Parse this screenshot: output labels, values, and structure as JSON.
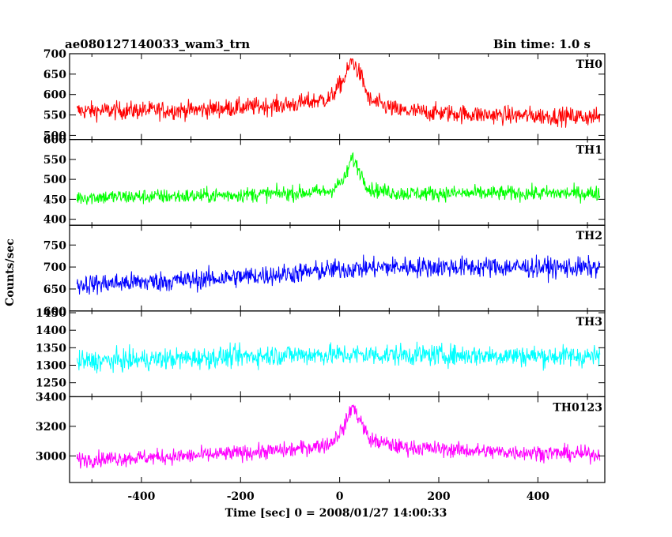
{
  "header": {
    "title": "ae080127140033_wam3_trn",
    "bin_time": "Bin time: 1.0 s"
  },
  "chart_data": {
    "type": "line",
    "xlabel": "Time [sec] 0 = 2008/01/27 14:00:33",
    "ylabel": "Counts/sec",
    "xlim": [
      -545,
      535
    ],
    "xticks": [
      -400,
      -200,
      0,
      200,
      400
    ],
    "data_xrange": [
      -530,
      525
    ],
    "burst_peak_x": 25,
    "grid": false,
    "panels": [
      {
        "name": "TH0",
        "color": "#ff0000",
        "ylim": [
          490,
          700
        ],
        "yticks": [
          500,
          550,
          600,
          650,
          700
        ],
        "profile": {
          "x": [
            -530,
            -300,
            -100,
            -20,
            10,
            25,
            45,
            60,
            120,
            300,
            525
          ],
          "y": [
            560,
            562,
            575,
            590,
            640,
            685,
            640,
            585,
            560,
            550,
            545
          ]
        },
        "noise_amplitude": 40
      },
      {
        "name": "TH1",
        "color": "#00ff00",
        "ylim": [
          385,
          600
        ],
        "yticks": [
          400,
          450,
          500,
          550,
          600
        ],
        "profile": {
          "x": [
            -530,
            -300,
            -100,
            -20,
            10,
            25,
            45,
            60,
            120,
            300,
            525
          ],
          "y": [
            455,
            458,
            465,
            470,
            500,
            555,
            510,
            475,
            465,
            465,
            465
          ]
        },
        "noise_amplitude": 34
      },
      {
        "name": "TH2",
        "color": "#0000ff",
        "ylim": [
          600,
          795
        ],
        "yticks": [
          600,
          650,
          700,
          750
        ],
        "profile": {
          "x": [
            -530,
            -300,
            -100,
            0,
            100,
            300,
            525
          ],
          "y": [
            660,
            670,
            685,
            695,
            700,
            700,
            698
          ]
        },
        "noise_amplitude": 42
      },
      {
        "name": "TH3",
        "color": "#00ffff",
        "ylim": [
          1210,
          1455
        ],
        "yticks": [
          1250,
          1300,
          1350,
          1400,
          1450
        ],
        "profile": {
          "x": [
            -530,
            -300,
            -100,
            0,
            100,
            300,
            525
          ],
          "y": [
            1310,
            1320,
            1330,
            1330,
            1330,
            1328,
            1325
          ]
        },
        "noise_amplitude": 55
      },
      {
        "name": "TH0123",
        "color": "#ff00ff",
        "ylim": [
          2820,
          3400
        ],
        "yticks": [
          3000,
          3200,
          3400
        ],
        "profile": {
          "x": [
            -530,
            -300,
            -100,
            -20,
            10,
            25,
            45,
            60,
            120,
            300,
            525
          ],
          "y": [
            2975,
            3000,
            3040,
            3080,
            3200,
            3340,
            3220,
            3110,
            3060,
            3030,
            3010
          ]
        },
        "noise_amplitude": 95
      }
    ]
  }
}
